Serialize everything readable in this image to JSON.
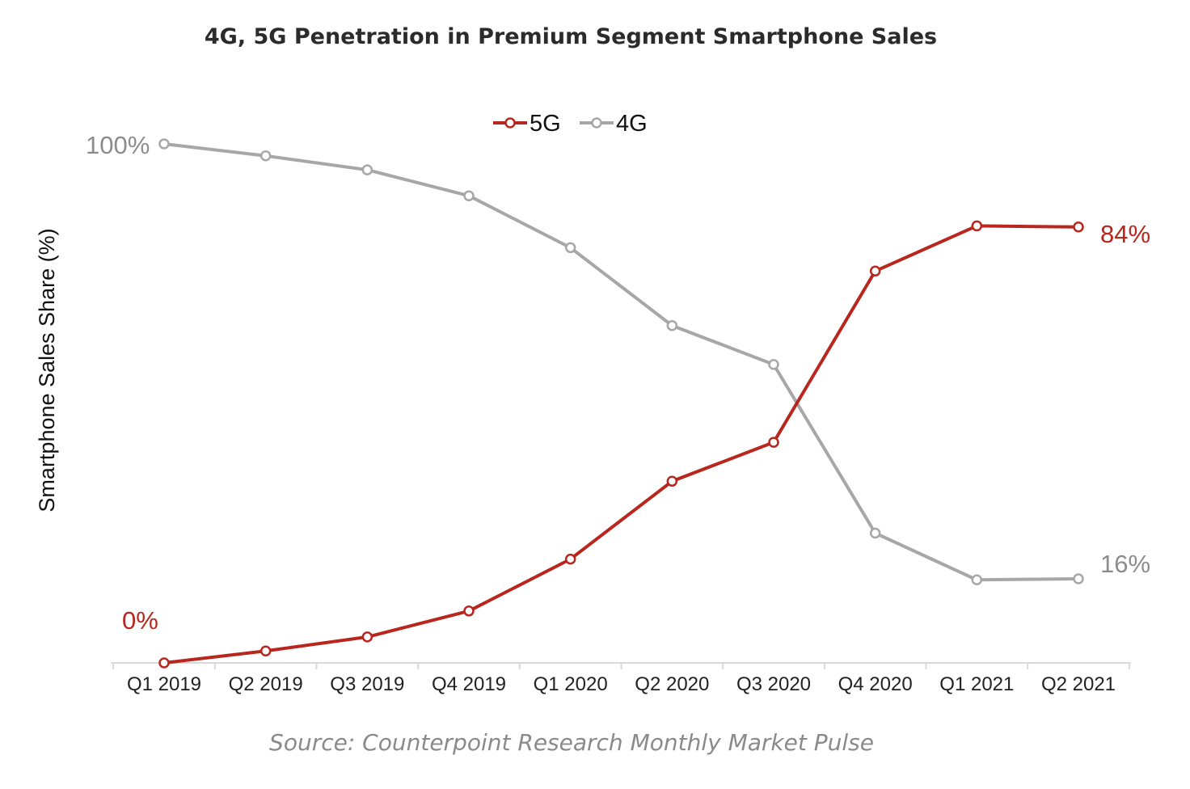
{
  "chart_data": {
    "type": "line",
    "title": "4G, 5G Penetration in Premium Segment Smartphone Sales",
    "xlabel": "",
    "ylabel": "Smartphone Sales Share (%)",
    "ylim": [
      0,
      100
    ],
    "grid": false,
    "legend_position": "top-center",
    "categories": [
      "Q1 2019",
      "Q2 2019",
      "Q3 2019",
      "Q4 2019",
      "Q1 2020",
      "Q2 2020",
      "Q3 2020",
      "Q4 2020",
      "Q1 2021",
      "Q2 2021"
    ],
    "series": [
      {
        "name": "5G",
        "color": "#b8261e",
        "values": [
          0,
          2.3,
          5.0,
          10.0,
          20.0,
          35.0,
          42.5,
          75.5,
          84.2,
          84.0
        ]
      },
      {
        "name": "4G",
        "color": "#a7a7a9",
        "values": [
          100,
          97.7,
          95.0,
          90.0,
          80.0,
          65.0,
          57.5,
          25.0,
          16.0,
          16.2
        ]
      }
    ],
    "annotations": {
      "start_4g": "100%",
      "start_5g": "0%",
      "end_5g": "84%",
      "end_4g": "16%"
    },
    "source": "Source: Counterpoint Research Monthly Market Pulse"
  }
}
